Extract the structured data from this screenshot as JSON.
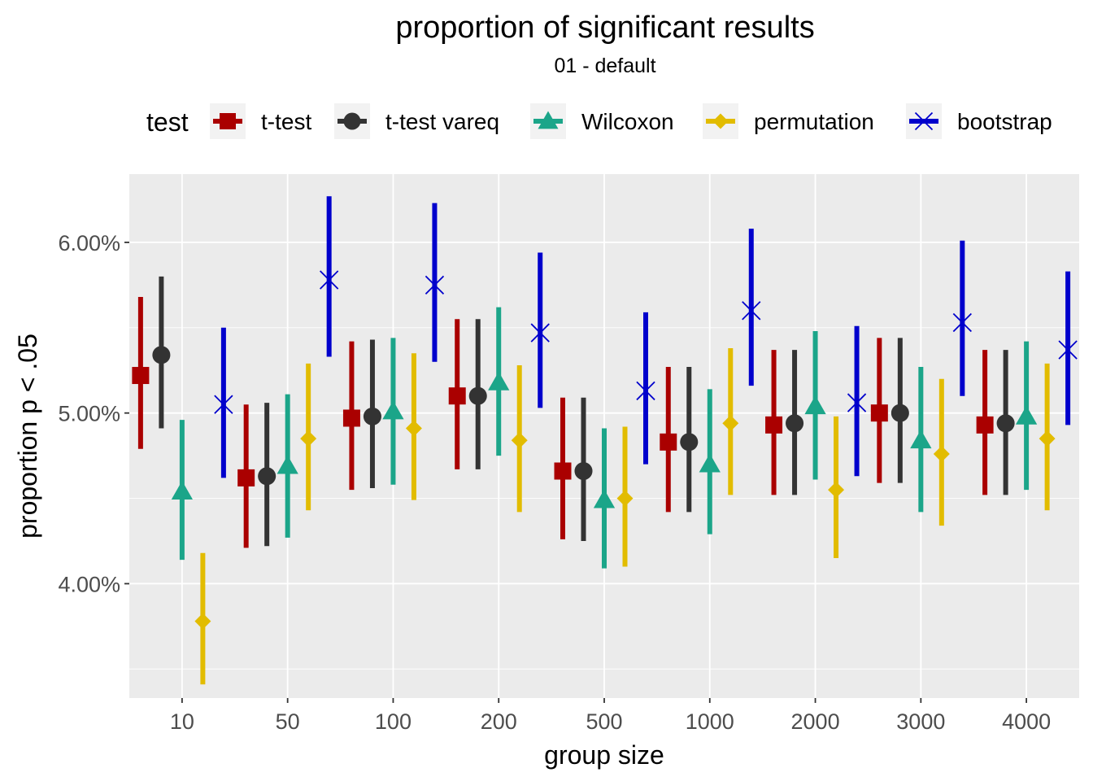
{
  "chart_data": {
    "type": "pointrange",
    "title": "proportion of significant results",
    "subtitle": "01 - default",
    "xlabel": "group size",
    "ylabel": "proportion p < .05",
    "categories": [
      "10",
      "50",
      "100",
      "200",
      "500",
      "1000",
      "2000",
      "3000",
      "4000"
    ],
    "ylim": [
      0.0333,
      0.064
    ],
    "yticks": [
      0.04,
      0.05,
      0.06
    ],
    "ytick_labels": [
      "4.00%",
      "5.00%",
      "6.00%"
    ],
    "grid": true,
    "legend": {
      "title": "test",
      "position": "top"
    },
    "series": [
      {
        "name": "t-test",
        "color": "#AA0000",
        "shape": "square",
        "values": [
          0.0522,
          0.0462,
          0.0497,
          0.051,
          0.0466,
          0.0483,
          0.0493,
          0.05,
          0.0493
        ],
        "lower": [
          0.0479,
          0.0421,
          0.0455,
          0.0467,
          0.0426,
          0.0442,
          0.0452,
          0.0459,
          0.0452
        ],
        "upper": [
          0.0568,
          0.0505,
          0.0542,
          0.0555,
          0.0509,
          0.0527,
          0.0537,
          0.0544,
          0.0537
        ]
      },
      {
        "name": "t-test vareq",
        "color": "#333333",
        "shape": "circle",
        "values": [
          0.0534,
          0.0463,
          0.0498,
          0.051,
          0.0466,
          0.0483,
          0.0494,
          0.05,
          0.0494
        ],
        "lower": [
          0.0491,
          0.0422,
          0.0456,
          0.0467,
          0.0425,
          0.0442,
          0.0452,
          0.0459,
          0.0452
        ],
        "upper": [
          0.058,
          0.0506,
          0.0543,
          0.0555,
          0.0509,
          0.0527,
          0.0537,
          0.0544,
          0.0537
        ]
      },
      {
        "name": "Wilcoxon",
        "color": "#1BA589",
        "shape": "triangle",
        "values": [
          0.0454,
          0.0469,
          0.0501,
          0.0518,
          0.0449,
          0.047,
          0.0504,
          0.0484,
          0.0498
        ],
        "lower": [
          0.0414,
          0.0427,
          0.0458,
          0.0475,
          0.0409,
          0.0429,
          0.0461,
          0.0442,
          0.0455
        ],
        "upper": [
          0.0496,
          0.0511,
          0.0544,
          0.0562,
          0.0491,
          0.0514,
          0.0548,
          0.0527,
          0.0542
        ]
      },
      {
        "name": "permutation",
        "color": "#E2BC00",
        "shape": "diamond",
        "values": [
          0.0378,
          0.0485,
          0.0491,
          0.0484,
          0.045,
          0.0494,
          0.0455,
          0.0476,
          0.0485
        ],
        "lower": [
          0.0341,
          0.0443,
          0.0449,
          0.0442,
          0.041,
          0.0452,
          0.0415,
          0.0434,
          0.0443
        ],
        "upper": [
          0.0418,
          0.0529,
          0.0535,
          0.0528,
          0.0492,
          0.0538,
          0.0498,
          0.052,
          0.0529
        ]
      },
      {
        "name": "bootstrap",
        "color": "#0000CC",
        "shape": "x",
        "values": [
          0.0505,
          0.0578,
          0.0575,
          0.0547,
          0.0513,
          0.056,
          0.0506,
          0.0553,
          0.0537
        ],
        "lower": [
          0.0462,
          0.0533,
          0.053,
          0.0503,
          0.047,
          0.0516,
          0.0463,
          0.051,
          0.0493
        ],
        "upper": [
          0.055,
          0.0627,
          0.0623,
          0.0594,
          0.0559,
          0.0608,
          0.0551,
          0.0601,
          0.0583
        ]
      }
    ]
  }
}
